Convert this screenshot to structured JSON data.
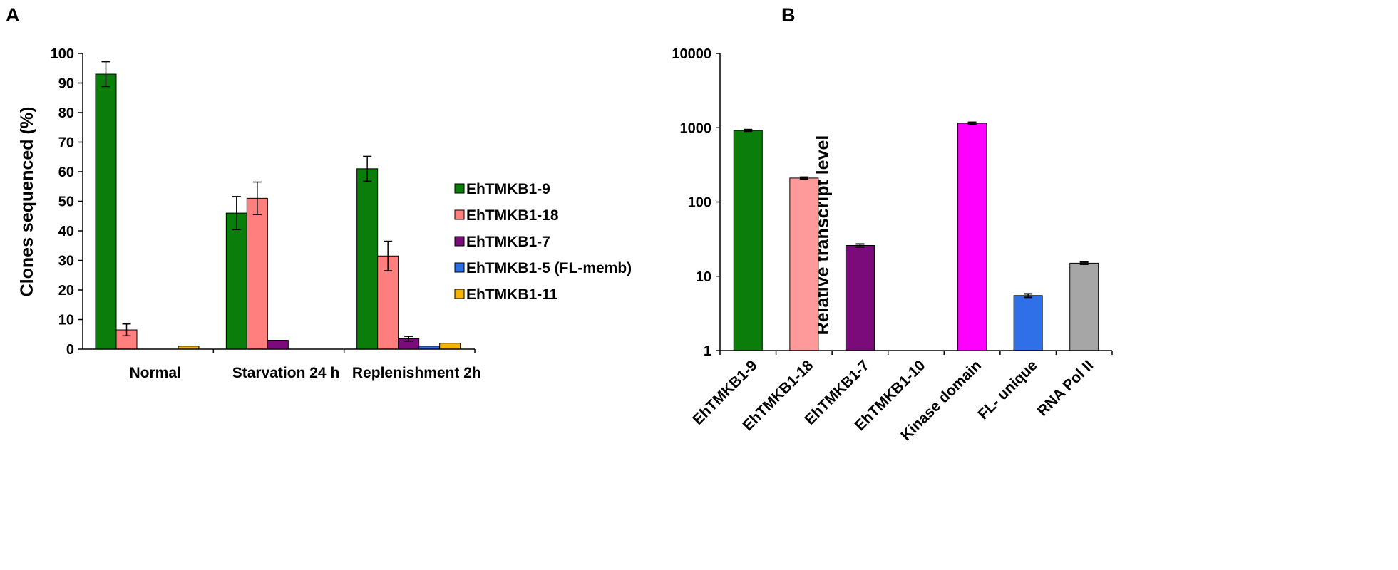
{
  "chart_data": [
    {
      "panel": "A",
      "type": "bar",
      "ylabel": "Clones sequenced (%)",
      "ylim": [
        0,
        100
      ],
      "yticks": [
        0,
        10,
        20,
        30,
        40,
        50,
        60,
        70,
        80,
        90,
        100
      ],
      "categories": [
        "Normal",
        "Starvation 24 h",
        "Replenishment 2h"
      ],
      "series": [
        {
          "name": "EhTMKB1-9",
          "color": "#0b7d0b",
          "values": [
            93,
            46,
            61
          ],
          "errors": [
            4.2,
            5.6,
            4.2
          ]
        },
        {
          "name": "EhTMKB1-18",
          "color": "#ff7f7f",
          "values": [
            6.5,
            51,
            31.5
          ],
          "errors": [
            2.0,
            5.5,
            5.0
          ]
        },
        {
          "name": "EhTMKB1-7",
          "color": "#7b0a7b",
          "values": [
            0,
            3,
            3.5
          ],
          "errors": [
            0,
            0,
            0.8
          ]
        },
        {
          "name": "EhTMKB1-5 (FL-memb)",
          "color": "#2f6fe8",
          "values": [
            0,
            0,
            1
          ],
          "errors": [
            0,
            0,
            0
          ]
        },
        {
          "name": "EhTMKB1-11",
          "color": "#f5b400",
          "values": [
            1,
            0,
            2
          ],
          "errors": [
            0,
            0,
            0
          ]
        }
      ],
      "legend_position": "right"
    },
    {
      "panel": "B",
      "type": "bar",
      "ylabel": "Relative transcript level",
      "yscale": "log",
      "ylim": [
        1,
        10000
      ],
      "yticks": [
        1,
        10,
        100,
        1000,
        10000
      ],
      "categories": [
        "EhTMKB1-9",
        "EhTMKB1-18",
        "EhTMKB1-7",
        "EhTMKB1-10",
        "Kinase domain",
        "FL- unique",
        "RNA Pol II"
      ],
      "values": [
        920,
        210,
        26,
        null,
        1150,
        5.5,
        15
      ],
      "errors": [
        25,
        6,
        1.2,
        null,
        35,
        0.3,
        0.5
      ],
      "colors": [
        "#0b7d0b",
        "#ff9a9a",
        "#7b0a7b",
        "#ffffff",
        "#ff00ff",
        "#2f6fe8",
        "#a6a6a6"
      ]
    }
  ]
}
